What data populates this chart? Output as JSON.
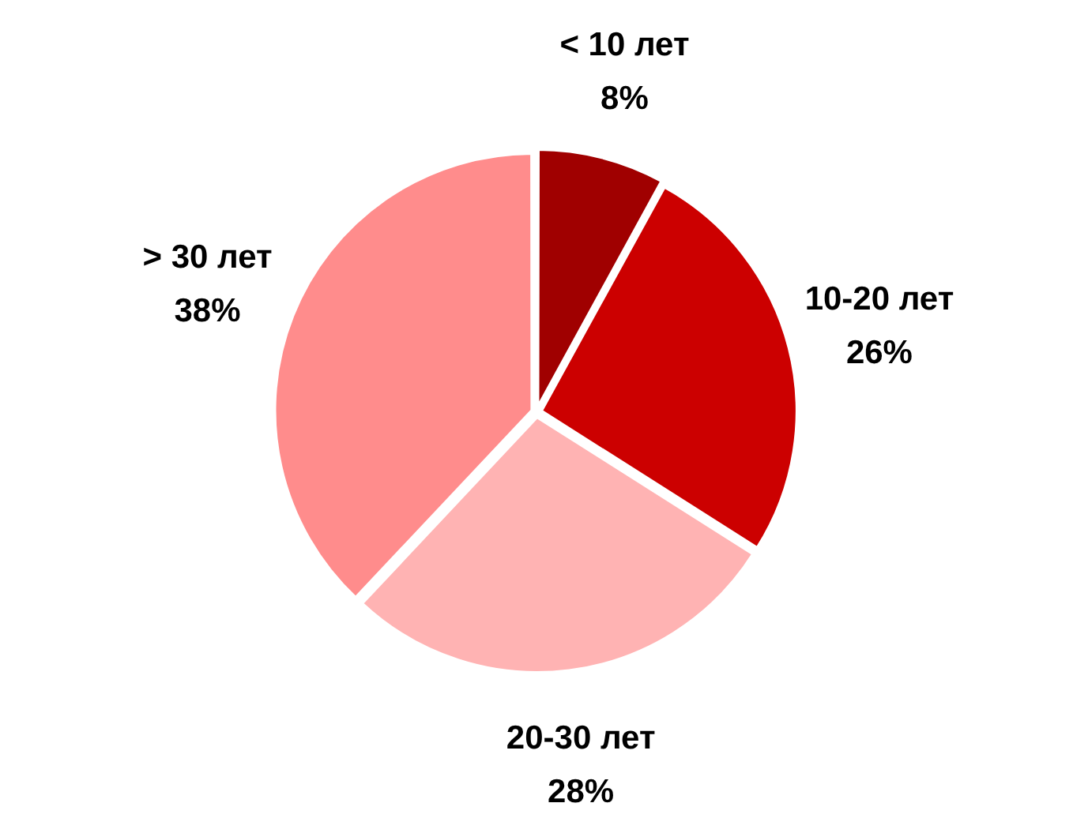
{
  "chart_data": {
    "type": "pie",
    "categories": [
      "< 10 лет",
      "10-20 лет",
      "20-30 лет",
      "> 30 лет"
    ],
    "values": [
      8,
      26,
      28,
      38
    ],
    "colors": [
      "#a00000",
      "#cc0000",
      "#ffb3b3",
      "#ff8c8c"
    ],
    "value_labels": [
      "8%",
      "26%",
      "28%",
      "38%"
    ],
    "legend": false
  }
}
